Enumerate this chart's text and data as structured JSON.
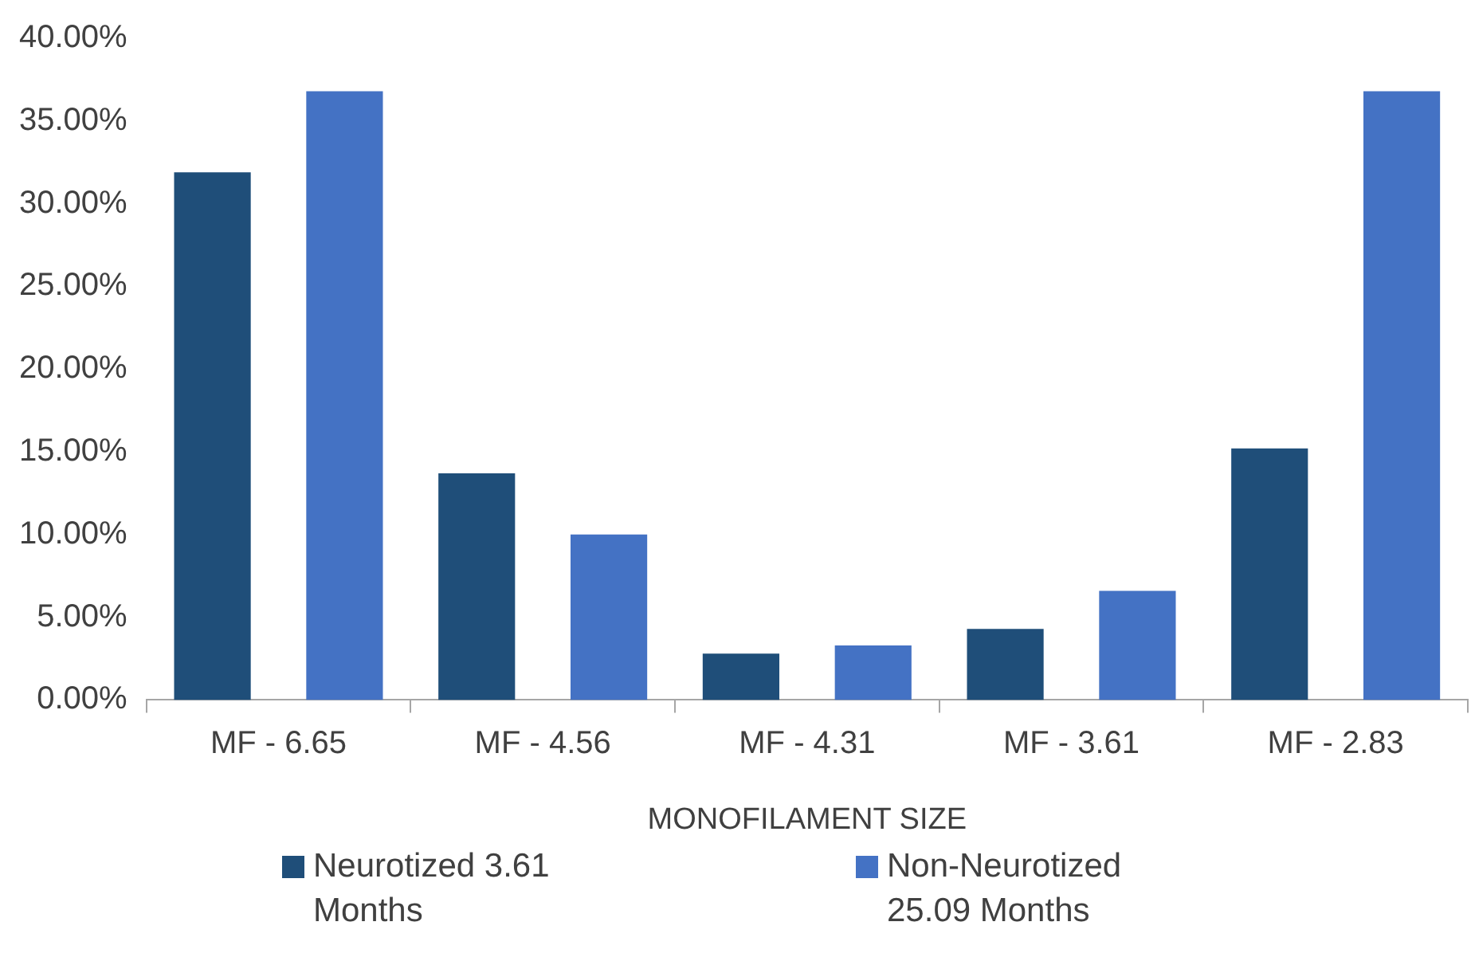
{
  "chart_data": {
    "type": "bar",
    "xlabel": "MONOFILAMENT SIZE",
    "categories": [
      "MF - 6.65",
      "MF - 4.56",
      "MF - 4.31",
      "MF - 3.61",
      "MF - 2.83"
    ],
    "series": [
      {
        "name": "Neurotized 3.61 Months",
        "color": "#1f4e79",
        "values": [
          31.9,
          13.7,
          2.8,
          4.3,
          15.2
        ]
      },
      {
        "name": "Non-Neurotized 25.09 Months",
        "color": "#4472c4",
        "values": [
          36.8,
          10.0,
          3.3,
          6.6,
          36.8
        ]
      }
    ],
    "ylim": [
      0,
      40
    ],
    "yticks": [
      {
        "value": 0,
        "label": "0.00%"
      },
      {
        "value": 5,
        "label": "5.00%"
      },
      {
        "value": 10,
        "label": "10.00%"
      },
      {
        "value": 15,
        "label": "15.00%"
      },
      {
        "value": 20,
        "label": "20.00%"
      },
      {
        "value": 25,
        "label": "25.00%"
      },
      {
        "value": 30,
        "label": "30.00%"
      },
      {
        "value": 35,
        "label": "35.00%"
      },
      {
        "value": 40,
        "label": "40.00%"
      }
    ],
    "grid": false,
    "legend": "bottom"
  }
}
